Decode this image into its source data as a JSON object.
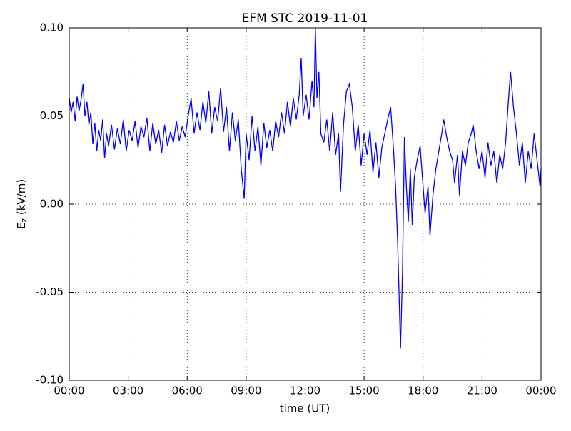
{
  "chart_data": {
    "type": "line",
    "title": "EFM STC    2019-11-01",
    "x_label": "time (UT)",
    "y_label": {
      "main": "E",
      "sub": "z",
      "unit": " (kV/m)"
    },
    "xlim": [
      0,
      24
    ],
    "xticks": [
      {
        "value": 0,
        "label": "00:00"
      },
      {
        "value": 3,
        "label": "03:00"
      },
      {
        "value": 6,
        "label": "06:00"
      },
      {
        "value": 9,
        "label": "09:00"
      },
      {
        "value": 12,
        "label": "12:00"
      },
      {
        "value": 15,
        "label": "15:00"
      },
      {
        "value": 18,
        "label": "18:00"
      },
      {
        "value": 21,
        "label": "21:00"
      },
      {
        "value": 24,
        "label": "00:00"
      }
    ],
    "ylim": [
      -0.1,
      0.1
    ],
    "yticks": [
      {
        "value": -0.1,
        "label": "-0.10"
      },
      -0.05,
      {
        "value": 0,
        "label": "0.00"
      },
      0.05,
      {
        "value": 0.1,
        "label": "0.10"
      }
    ],
    "grid": true,
    "color": "#0000ff",
    "x": [
      0,
      0.1,
      0.2,
      0.3,
      0.4,
      0.5,
      0.6,
      0.7,
      0.8,
      0.9,
      1,
      1.1,
      1.2,
      1.3,
      1.4,
      1.5,
      1.6,
      1.7,
      1.8,
      1.9,
      2,
      2.15,
      2.3,
      2.45,
      2.6,
      2.75,
      2.9,
      3.05,
      3.2,
      3.35,
      3.5,
      3.65,
      3.8,
      3.95,
      4.1,
      4.25,
      4.4,
      4.55,
      4.7,
      4.85,
      5,
      5.15,
      5.3,
      5.45,
      5.6,
      5.75,
      5.9,
      6.05,
      6.2,
      6.35,
      6.5,
      6.65,
      6.8,
      6.95,
      7.1,
      7.25,
      7.4,
      7.55,
      7.7,
      7.85,
      8,
      8.15,
      8.3,
      8.45,
      8.6,
      8.75,
      8.9,
      9,
      9.15,
      9.3,
      9.45,
      9.6,
      9.75,
      9.9,
      10.05,
      10.2,
      10.35,
      10.5,
      10.65,
      10.8,
      10.95,
      11.1,
      11.25,
      11.4,
      11.55,
      11.7,
      11.8,
      11.9,
      12.05,
      12.2,
      12.35,
      12.45,
      12.52,
      12.6,
      12.7,
      12.8,
      12.95,
      13.1,
      13.25,
      13.4,
      13.55,
      13.7,
      13.8,
      13.95,
      14.1,
      14.25,
      14.4,
      14.55,
      14.7,
      14.85,
      15,
      15.15,
      15.3,
      15.45,
      15.6,
      15.75,
      15.9,
      16.05,
      16.2,
      16.35,
      16.5,
      16.6,
      16.7,
      16.8,
      16.85,
      16.95,
      17.05,
      17.15,
      17.25,
      17.35,
      17.45,
      17.55,
      17.7,
      17.85,
      18,
      18.1,
      18.25,
      18.35,
      18.5,
      18.65,
      18.8,
      18.95,
      19.05,
      19.2,
      19.35,
      19.5,
      19.6,
      19.75,
      19.85,
      20,
      20.15,
      20.3,
      20.45,
      20.55,
      20.7,
      20.85,
      21,
      21.15,
      21.3,
      21.45,
      21.6,
      21.75,
      21.9,
      22.05,
      22.2,
      22.35,
      22.45,
      22.6,
      22.75,
      22.9,
      23.05,
      23.2,
      23.35,
      23.5,
      23.65,
      23.8,
      23.95,
      24
    ],
    "values": [
      0.06,
      0.052,
      0.058,
      0.047,
      0.061,
      0.053,
      0.059,
      0.068,
      0.05,
      0.058,
      0.045,
      0.052,
      0.034,
      0.046,
      0.03,
      0.042,
      0.036,
      0.048,
      0.026,
      0.04,
      0.033,
      0.045,
      0.031,
      0.043,
      0.034,
      0.048,
      0.03,
      0.042,
      0.036,
      0.047,
      0.032,
      0.044,
      0.038,
      0.049,
      0.03,
      0.046,
      0.034,
      0.042,
      0.029,
      0.045,
      0.033,
      0.041,
      0.035,
      0.047,
      0.036,
      0.044,
      0.038,
      0.05,
      0.06,
      0.04,
      0.052,
      0.042,
      0.058,
      0.046,
      0.064,
      0.04,
      0.055,
      0.047,
      0.066,
      0.041,
      0.055,
      0.03,
      0.052,
      0.036,
      0.048,
      0.02,
      0.003,
      0.04,
      0.025,
      0.05,
      0.03,
      0.044,
      0.022,
      0.046,
      0.032,
      0.042,
      0.03,
      0.047,
      0.038,
      0.052,
      0.04,
      0.058,
      0.044,
      0.06,
      0.048,
      0.062,
      0.083,
      0.05,
      0.062,
      0.048,
      0.07,
      0.055,
      0.1,
      0.06,
      0.075,
      0.04,
      0.035,
      0.048,
      0.03,
      0.052,
      0.028,
      0.04,
      0.007,
      0.045,
      0.064,
      0.068,
      0.055,
      0.03,
      0.045,
      0.022,
      0.04,
      0.028,
      0.042,
      0.018,
      0.035,
      0.015,
      0.032,
      0.04,
      0.048,
      0.055,
      0.03,
      0.01,
      -0.02,
      -0.06,
      -0.082,
      -0.04,
      0.038,
      0.01,
      -0.01,
      0.02,
      -0.012,
      0.015,
      0.025,
      0.033,
      0.01,
      -0.005,
      0.01,
      -0.018,
      0.005,
      0.02,
      0.03,
      0.04,
      0.048,
      0.038,
      0.03,
      0.025,
      0.012,
      0.028,
      0.005,
      0.03,
      0.022,
      0.035,
      0.04,
      0.045,
      0.03,
      0.02,
      0.03,
      0.015,
      0.035,
      0.022,
      0.03,
      0.012,
      0.028,
      0.02,
      0.035,
      0.06,
      0.075,
      0.055,
      0.04,
      0.022,
      0.035,
      0.012,
      0.03,
      0.02,
      0.04,
      0.025,
      0.01,
      0.02
    ]
  }
}
